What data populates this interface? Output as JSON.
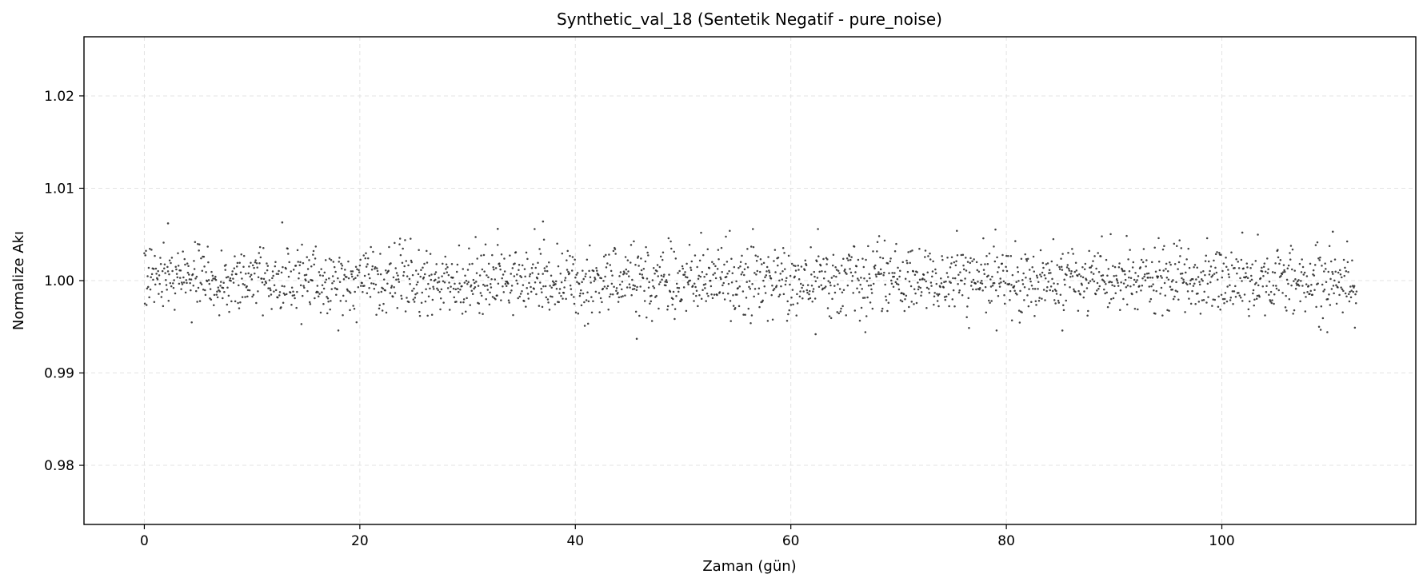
{
  "chart_data": {
    "type": "scatter",
    "title": "Synthetic_val_18 (Sentetik Negatif - pure_noise)",
    "xlabel": "Zaman (gün)",
    "ylabel": "Normalize Akı",
    "xlim": [
      -5.6,
      118.0
    ],
    "ylim": [
      0.9736,
      1.0264
    ],
    "xticks": [
      0,
      20,
      40,
      60,
      80,
      100
    ],
    "xtick_labels": [
      "0",
      "20",
      "40",
      "60",
      "80",
      "100"
    ],
    "yticks": [
      0.98,
      0.99,
      1.0,
      1.01,
      1.02
    ],
    "ytick_labels": [
      "0.98",
      "0.99",
      "1.00",
      "1.01",
      "1.02"
    ],
    "grid": true,
    "legend": "none",
    "marker_color": "#222222",
    "series": [
      {
        "x_start": 0.0,
        "x_end": 112.5,
        "n_points": 2200,
        "y_mean": 1.0,
        "y_std": 0.0018,
        "notable_points": [
          {
            "x": 2.2,
            "y": 1.0062
          },
          {
            "x": 12.8,
            "y": 1.0063
          },
          {
            "x": 37.0,
            "y": 1.0064
          },
          {
            "x": 32.8,
            "y": 1.0056
          },
          {
            "x": 45.7,
            "y": 0.9937
          },
          {
            "x": 62.3,
            "y": 0.9942
          },
          {
            "x": 85.2,
            "y": 0.9946
          },
          {
            "x": 110.3,
            "y": 1.0053
          },
          {
            "x": 101.9,
            "y": 1.0052
          }
        ]
      }
    ]
  }
}
